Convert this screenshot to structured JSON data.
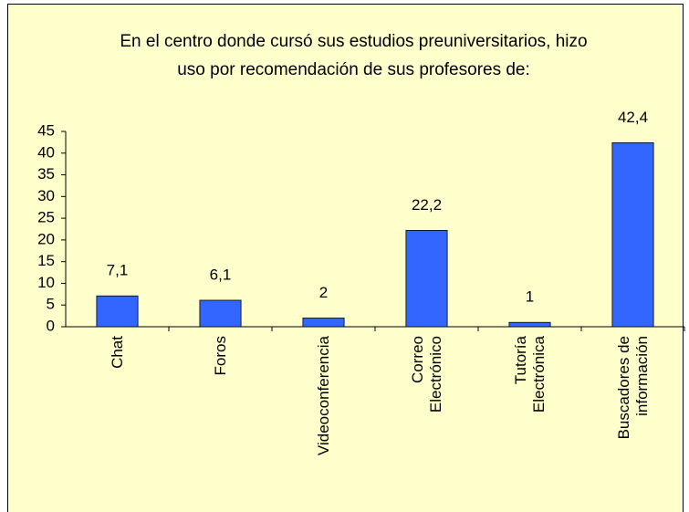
{
  "chart_data": {
    "type": "bar",
    "title": "En el centro donde cursó sus estudios preuniversitarios, hizo\nuso por recomendación de sus profesores de:",
    "categories": [
      "Chat",
      "Foros",
      "Videoconferencia",
      "Correo\nElectrónico",
      "Tutoría\nElectrónica",
      "Buscadores de\ninformación"
    ],
    "values": [
      7.1,
      6.1,
      2,
      22.2,
      1,
      42.4
    ],
    "value_labels": [
      "7,1",
      "6,1",
      "2",
      "22,2",
      "1",
      "42,4"
    ],
    "color": "#3366ff",
    "ylim": [
      0,
      45
    ],
    "yticks": [
      0,
      5,
      10,
      15,
      20,
      25,
      30,
      35,
      40,
      45
    ],
    "grid": false
  }
}
